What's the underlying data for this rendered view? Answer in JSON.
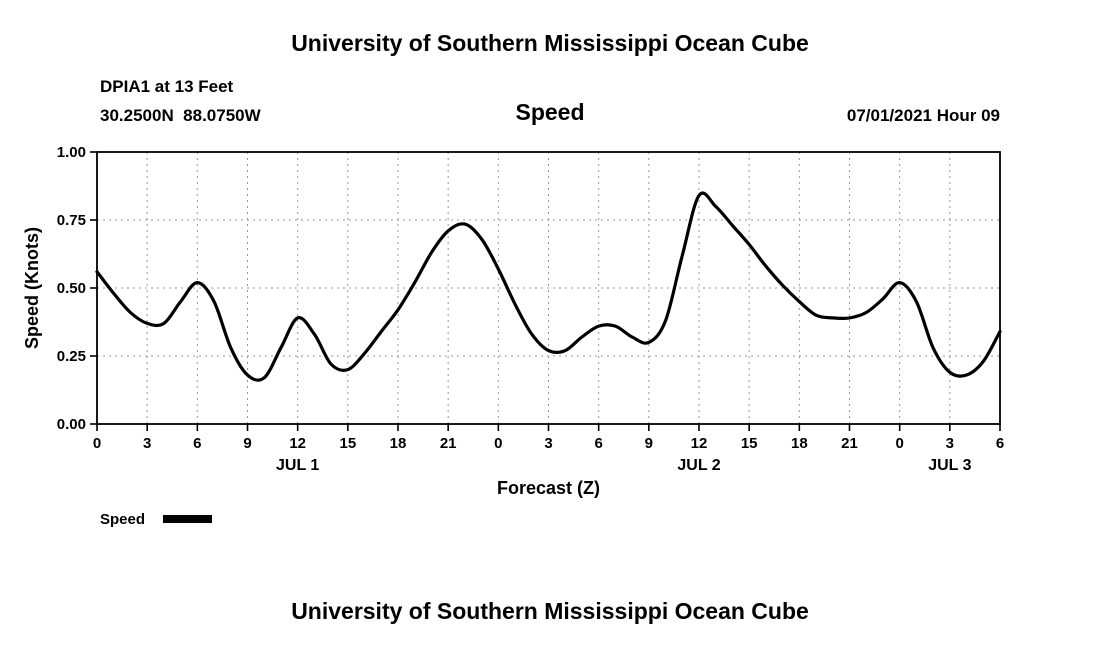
{
  "page": {
    "top_title": "University of Southern Mississippi Ocean Cube",
    "bottom_title": "University of Southern Mississippi Ocean Cube"
  },
  "header": {
    "station": "DPIA1 at 13 Feet",
    "coordinates": "30.2500N  88.0750W",
    "chart_title": "Speed",
    "datetime": "07/01/2021 Hour 09"
  },
  "legend": {
    "label": "Speed"
  },
  "chart_data": {
    "type": "line",
    "title": "Speed",
    "xlabel": "Forecast (Z)",
    "ylabel": "Speed (Knots)",
    "x_domain": [
      0,
      54
    ],
    "ylim": [
      0.0,
      1.0
    ],
    "grid": true,
    "legend_position": "bottom-left",
    "line_color": "#000000",
    "grid_color": "#999999",
    "x_ticks": [
      0,
      3,
      6,
      9,
      12,
      15,
      18,
      21,
      24,
      27,
      30,
      33,
      36,
      39,
      42,
      45,
      48,
      51,
      54
    ],
    "x_tick_labels": [
      "0",
      "3",
      "6",
      "9",
      "12",
      "15",
      "18",
      "21",
      "0",
      "3",
      "6",
      "9",
      "12",
      "15",
      "18",
      "21",
      "0",
      "3",
      "6"
    ],
    "y_ticks": [
      0.0,
      0.25,
      0.5,
      0.75,
      1.0
    ],
    "y_tick_labels": [
      "0.00",
      "0.25",
      "0.50",
      "0.75",
      "1.00"
    ],
    "day_labels": [
      {
        "label": "JUL 1",
        "hour": 12
      },
      {
        "label": "JUL 2",
        "hour": 36
      },
      {
        "label": "JUL 3",
        "hour": 51
      }
    ],
    "series": [
      {
        "name": "Speed",
        "x": [
          0,
          1,
          2,
          3,
          4,
          5,
          6,
          7,
          8,
          9,
          10,
          11,
          12,
          13,
          14,
          15,
          16,
          17,
          18,
          19,
          20,
          21,
          22,
          23,
          24,
          25,
          26,
          27,
          28,
          29,
          30,
          31,
          32,
          33,
          34,
          35,
          36,
          37,
          38,
          39,
          40,
          41,
          42,
          43,
          44,
          45,
          46,
          47,
          48,
          49,
          50,
          51,
          52,
          53,
          54
        ],
        "y": [
          0.56,
          0.48,
          0.41,
          0.37,
          0.37,
          0.45,
          0.52,
          0.45,
          0.28,
          0.18,
          0.17,
          0.28,
          0.39,
          0.33,
          0.22,
          0.2,
          0.26,
          0.34,
          0.42,
          0.52,
          0.63,
          0.71,
          0.735,
          0.68,
          0.57,
          0.44,
          0.33,
          0.27,
          0.27,
          0.32,
          0.36,
          0.36,
          0.32,
          0.3,
          0.38,
          0.62,
          0.84,
          0.8,
          0.73,
          0.66,
          0.58,
          0.51,
          0.45,
          0.4,
          0.39,
          0.39,
          0.41,
          0.46,
          0.52,
          0.45,
          0.28,
          0.19,
          0.18,
          0.23,
          0.34
        ]
      }
    ]
  }
}
